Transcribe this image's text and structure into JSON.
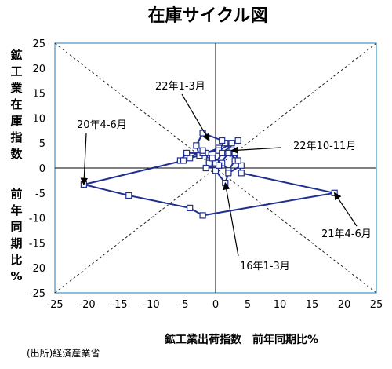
{
  "chart_data": {
    "type": "scatter",
    "title": "在庫サイクル図",
    "xlabel": "鉱工業出荷指数　前年同期比%",
    "ylabel_parts": [
      "鉱工業在庫指数",
      "前年同期比%"
    ],
    "source": "(出所)経済産業省",
    "xlim": [
      -25,
      25
    ],
    "ylim": [
      -25,
      25
    ],
    "xticks": [
      "-25",
      "-20",
      "-15",
      "-10",
      "-5",
      "0",
      "5",
      "10",
      "15",
      "20",
      "25"
    ],
    "yticks": [
      "25",
      "20",
      "15",
      "10",
      "5",
      "0",
      "-5",
      "-10",
      "-15",
      "-20",
      "-25"
    ],
    "grid": false,
    "reference_lines": "diagonals y=x and y=-x (dashed)",
    "series": [
      {
        "color": "#1f2f8f",
        "marker": "square",
        "points": [
          [
            -1.0,
            1.5
          ],
          [
            -0.5,
            2.0
          ],
          [
            1.0,
            1.0
          ],
          [
            2.0,
            -0.5
          ],
          [
            3.0,
            1.5
          ],
          [
            2.5,
            3.5
          ],
          [
            1.5,
            5.0
          ],
          [
            0.5,
            4.0
          ],
          [
            -1.5,
            3.0
          ],
          [
            -1.0,
            1.0
          ],
          [
            0.0,
            -0.5
          ],
          [
            1.5,
            -3.0
          ],
          [
            2.0,
            -1.0
          ],
          [
            4.0,
            0.5
          ],
          [
            3.0,
            3.0
          ],
          [
            1.0,
            5.5
          ],
          [
            -2.0,
            7.0
          ],
          [
            -3.0,
            4.5
          ],
          [
            -2.5,
            2.5
          ],
          [
            -4.0,
            2.0
          ],
          [
            -5.5,
            1.5
          ],
          [
            -4.5,
            3.0
          ],
          [
            -2.0,
            3.0
          ],
          [
            0.5,
            3.5
          ],
          [
            2.5,
            5.0
          ],
          [
            3.5,
            5.5
          ],
          [
            1.0,
            3.0
          ],
          [
            0.0,
            1.0
          ],
          [
            -1.5,
            0.0
          ],
          [
            0.5,
            0.5
          ],
          [
            2.0,
            3.0
          ],
          [
            3.5,
            1.5
          ],
          [
            4.0,
            -1.0
          ],
          [
            18.5,
            -5.0
          ],
          [
            -2.0,
            -9.5
          ],
          [
            -4.0,
            -8.0
          ],
          [
            -13.5,
            -5.5
          ],
          [
            -20.5,
            -3.3
          ],
          [
            -5.0,
            1.5
          ],
          [
            -2.0,
            3.5
          ],
          [
            -0.5,
            2.0
          ],
          [
            0.5,
            0.5
          ]
        ]
      }
    ],
    "annotations": [
      {
        "text": "22年1-3月",
        "x": -1.0,
        "y": 5.5
      },
      {
        "text": "20年4-6月",
        "x": -20.5,
        "y": -3.3
      },
      {
        "text": "22年10-11月",
        "x": 2.5,
        "y": 3.5
      },
      {
        "text": "21年4-6月",
        "x": 18.5,
        "y": -5.0
      },
      {
        "text": "16年1-3月",
        "x": 1.5,
        "y": -3.0
      }
    ]
  }
}
